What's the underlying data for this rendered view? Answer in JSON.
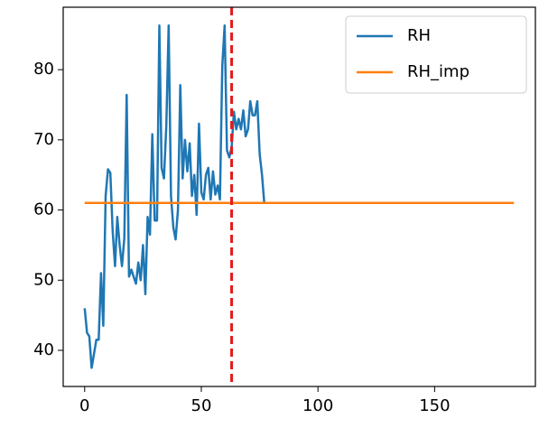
{
  "chart_data": {
    "type": "line",
    "series": [
      {
        "name": "RH",
        "color": "#1f77b4",
        "x": [
          0,
          1,
          2,
          3,
          4,
          5,
          6,
          7,
          8,
          9,
          10,
          11,
          12,
          13,
          14,
          15,
          16,
          17,
          18,
          19,
          20,
          21,
          22,
          23,
          24,
          25,
          26,
          27,
          28,
          29,
          30,
          31,
          32,
          33,
          34,
          35,
          36,
          37,
          38,
          39,
          40,
          41,
          42,
          43,
          44,
          45,
          46,
          47,
          48,
          49,
          50,
          51,
          52,
          53,
          54,
          55,
          56,
          57,
          58,
          59,
          60,
          61,
          62,
          63,
          64,
          65,
          66,
          67,
          68,
          69,
          70,
          71,
          72,
          73,
          74,
          75,
          76,
          77
        ],
        "values": [
          46,
          42.5,
          42,
          37.5,
          39.5,
          41.5,
          41.5,
          51,
          43.5,
          62,
          65.8,
          65.3,
          57,
          52,
          59,
          55,
          52,
          56,
          76.4,
          50.5,
          51.5,
          50.5,
          49.5,
          52.5,
          50,
          55,
          48,
          59,
          56.5,
          70.8,
          58.5,
          58.5,
          86.3,
          66,
          64.5,
          72,
          86.3,
          62,
          57.5,
          55.8,
          60,
          77.8,
          64.5,
          70,
          65.5,
          69.5,
          62,
          65,
          59.3,
          72.3,
          62.5,
          61.5,
          65,
          66,
          61.5,
          65.5,
          62.2,
          63.5,
          61.5,
          80.5,
          86.3,
          68.5,
          67.5,
          69,
          74,
          71.5,
          73,
          71.5,
          74.2,
          70.5,
          71.5,
          75.5,
          73.5,
          73.5,
          75.5,
          68,
          65,
          61
        ]
      },
      {
        "name": "RH_imp",
        "color": "#ff7f0e",
        "x": [
          0,
          184
        ],
        "values": [
          61,
          61
        ]
      }
    ],
    "vline": {
      "x": 63,
      "color": "#e31a1c",
      "dashed": true
    },
    "xlim": [
      -9.2,
      193.2
    ],
    "xticks": [
      0,
      50,
      100,
      150
    ],
    "ylim": [
      34.85,
      88.9
    ],
    "yticks": [
      40,
      50,
      60,
      70,
      80
    ],
    "legend": "upper right"
  }
}
